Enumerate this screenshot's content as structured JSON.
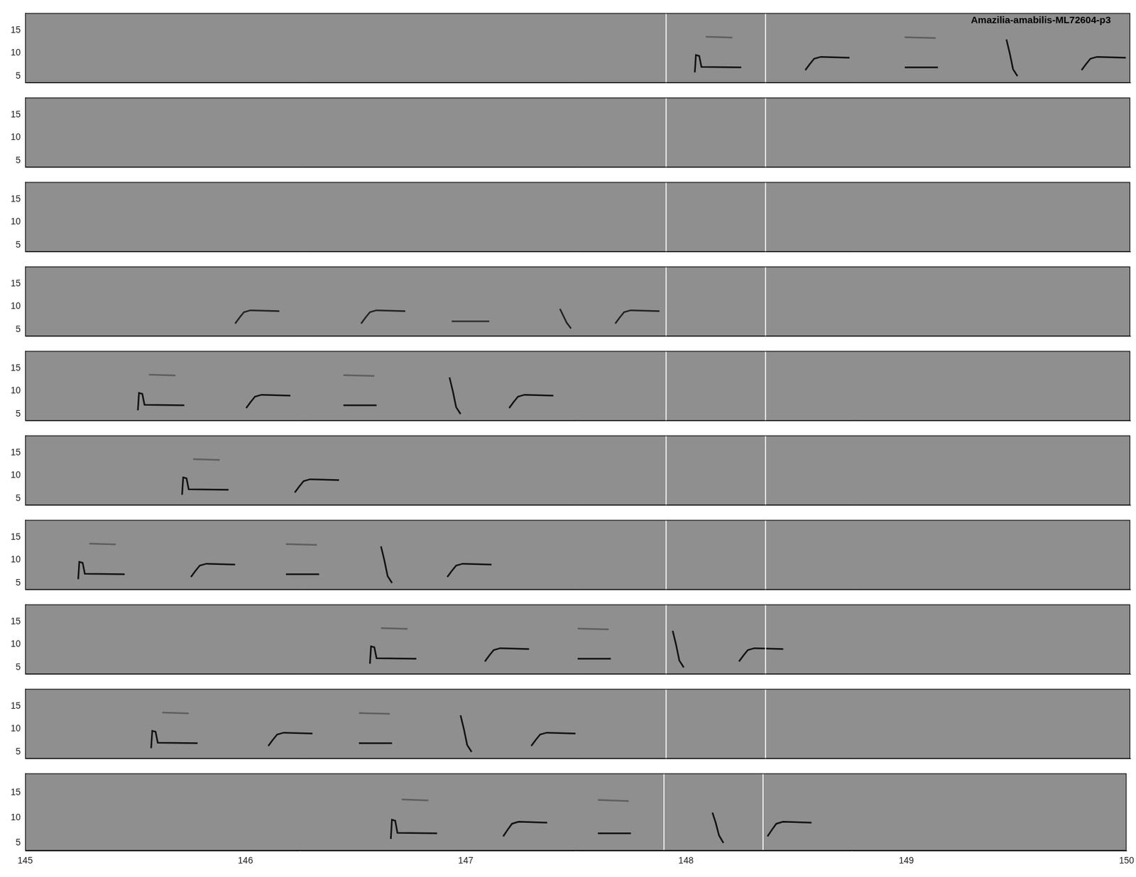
{
  "chart_data": [
    {
      "type": "line",
      "title": "Amazilia-amabilis-ML72604-p3",
      "xlim": [
        145,
        150
      ],
      "ylim": [
        3.5,
        18.75
      ],
      "xticks": [
        145,
        146,
        147,
        148,
        149,
        150
      ],
      "yticks": [
        5,
        10,
        15
      ],
      "tick_labels": "y",
      "vlines": [
        147.9,
        148.35
      ],
      "series": [
        {
          "color": "#111111",
          "x": [
            148.03,
            148.035,
            148.05,
            148.06,
            148.24
          ],
          "values": [
            5.8,
            9.6,
            9.4,
            7.0,
            6.9
          ]
        },
        {
          "color": "#5e5e5e",
          "x": [
            148.08,
            148.2
          ],
          "values": [
            13.6,
            13.4
          ]
        },
        {
          "color": "#111111",
          "x": [
            148.53,
            148.55,
            148.57,
            148.6,
            148.73
          ],
          "values": [
            6.3,
            7.6,
            8.8,
            9.2,
            9.0
          ]
        },
        {
          "color": "#111111",
          "x": [
            148.98,
            149.13
          ],
          "values": [
            6.9,
            6.9
          ]
        },
        {
          "color": "#5e5e5e",
          "x": [
            148.98,
            149.12
          ],
          "values": [
            13.5,
            13.3
          ]
        },
        {
          "color": "#111111",
          "x": [
            149.44,
            149.455,
            149.47,
            149.49
          ],
          "values": [
            13.0,
            10.0,
            6.5,
            5.0
          ]
        },
        {
          "color": "#111111",
          "x": [
            149.78,
            149.8,
            149.82,
            149.85,
            149.98
          ],
          "values": [
            6.3,
            7.6,
            8.8,
            9.2,
            9.0
          ]
        }
      ]
    },
    {
      "type": "line",
      "xlim": [
        145,
        150
      ],
      "ylim": [
        3.5,
        18.75
      ],
      "xticks": [
        145,
        146,
        147,
        148,
        149,
        150
      ],
      "yticks": [
        5,
        10,
        15
      ],
      "tick_labels": "y",
      "vlines": [
        147.9,
        148.35
      ],
      "series": []
    },
    {
      "type": "line",
      "xlim": [
        145,
        150
      ],
      "ylim": [
        3.5,
        18.75
      ],
      "xticks": [
        145,
        146,
        147,
        148,
        149,
        150
      ],
      "yticks": [
        5,
        10,
        15
      ],
      "tick_labels": "y",
      "vlines": [
        147.9,
        148.35
      ],
      "series": []
    },
    {
      "type": "line",
      "xlim": [
        145,
        150
      ],
      "ylim": [
        3.5,
        18.75
      ],
      "xticks": [
        145,
        146,
        147,
        148,
        149,
        150
      ],
      "yticks": [
        5,
        10,
        15
      ],
      "tick_labels": "y",
      "vlines": [
        147.9,
        148.35
      ],
      "series": [
        {
          "color": "#222222",
          "x": [
            145.95,
            145.97,
            145.99,
            146.02,
            146.15
          ],
          "values": [
            6.3,
            7.6,
            8.8,
            9.2,
            9.0
          ]
        },
        {
          "color": "#222222",
          "x": [
            146.52,
            146.54,
            146.56,
            146.59,
            146.72
          ],
          "values": [
            6.3,
            7.6,
            8.8,
            9.2,
            9.0
          ]
        },
        {
          "color": "#333333",
          "x": [
            146.93,
            147.1
          ],
          "values": [
            6.8,
            6.8
          ]
        },
        {
          "color": "#222222",
          "x": [
            147.42,
            147.435,
            147.45,
            147.47
          ],
          "values": [
            9.5,
            8.0,
            6.5,
            5.2
          ]
        },
        {
          "color": "#222222",
          "x": [
            147.67,
            147.69,
            147.71,
            147.74,
            147.87
          ],
          "values": [
            6.3,
            7.6,
            8.8,
            9.2,
            9.0
          ]
        }
      ]
    },
    {
      "type": "line",
      "xlim": [
        145,
        150
      ],
      "ylim": [
        3.5,
        18.75
      ],
      "xticks": [
        145,
        146,
        147,
        148,
        149,
        150
      ],
      "yticks": [
        5,
        10,
        15
      ],
      "tick_labels": "y",
      "vlines": [
        147.9,
        148.35
      ],
      "series": [
        {
          "color": "#111111",
          "x": [
            145.51,
            145.515,
            145.53,
            145.54,
            145.72
          ],
          "values": [
            5.8,
            9.6,
            9.4,
            7.0,
            6.9
          ]
        },
        {
          "color": "#5e5e5e",
          "x": [
            145.56,
            145.68
          ],
          "values": [
            13.6,
            13.4
          ]
        },
        {
          "color": "#111111",
          "x": [
            146.0,
            146.02,
            146.04,
            146.07,
            146.2
          ],
          "values": [
            6.3,
            7.6,
            8.8,
            9.2,
            9.0
          ]
        },
        {
          "color": "#111111",
          "x": [
            146.44,
            146.59
          ],
          "values": [
            6.9,
            6.9
          ]
        },
        {
          "color": "#5e5e5e",
          "x": [
            146.44,
            146.58
          ],
          "values": [
            13.5,
            13.3
          ]
        },
        {
          "color": "#111111",
          "x": [
            146.92,
            146.935,
            146.95,
            146.97
          ],
          "values": [
            13.0,
            10.0,
            6.5,
            5.0
          ]
        },
        {
          "color": "#111111",
          "x": [
            147.19,
            147.21,
            147.23,
            147.26,
            147.39
          ],
          "values": [
            6.3,
            7.6,
            8.8,
            9.2,
            9.0
          ]
        }
      ]
    },
    {
      "type": "line",
      "xlim": [
        145,
        150
      ],
      "ylim": [
        3.5,
        18.75
      ],
      "xticks": [
        145,
        146,
        147,
        148,
        149,
        150
      ],
      "yticks": [
        5,
        10,
        15
      ],
      "tick_labels": "y",
      "vlines": [
        147.9,
        148.35
      ],
      "series": [
        {
          "color": "#111111",
          "x": [
            145.71,
            145.715,
            145.73,
            145.74,
            145.92
          ],
          "values": [
            5.8,
            9.6,
            9.4,
            7.0,
            6.9
          ]
        },
        {
          "color": "#5e5e5e",
          "x": [
            145.76,
            145.88
          ],
          "values": [
            13.6,
            13.4
          ]
        },
        {
          "color": "#111111",
          "x": [
            146.22,
            146.24,
            146.26,
            146.29,
            146.42
          ],
          "values": [
            6.3,
            7.6,
            8.8,
            9.2,
            9.0
          ]
        }
      ]
    },
    {
      "type": "line",
      "xlim": [
        145,
        150
      ],
      "ylim": [
        3.5,
        18.75
      ],
      "xticks": [
        145,
        146,
        147,
        148,
        149,
        150
      ],
      "yticks": [
        5,
        10,
        15
      ],
      "tick_labels": "y",
      "vlines": [
        147.9,
        148.35
      ],
      "series": [
        {
          "color": "#111111",
          "x": [
            145.24,
            145.245,
            145.26,
            145.27,
            145.45
          ],
          "values": [
            5.8,
            9.6,
            9.4,
            7.0,
            6.9
          ]
        },
        {
          "color": "#5e5e5e",
          "x": [
            145.29,
            145.41
          ],
          "values": [
            13.6,
            13.4
          ]
        },
        {
          "color": "#111111",
          "x": [
            145.75,
            145.77,
            145.79,
            145.82,
            145.95
          ],
          "values": [
            6.3,
            7.6,
            8.8,
            9.2,
            9.0
          ]
        },
        {
          "color": "#111111",
          "x": [
            146.18,
            146.33
          ],
          "values": [
            6.9,
            6.9
          ]
        },
        {
          "color": "#5e5e5e",
          "x": [
            146.18,
            146.32
          ],
          "values": [
            13.5,
            13.3
          ]
        },
        {
          "color": "#111111",
          "x": [
            146.61,
            146.625,
            146.64,
            146.66
          ],
          "values": [
            13.0,
            10.0,
            6.5,
            5.0
          ]
        },
        {
          "color": "#111111",
          "x": [
            146.91,
            146.93,
            146.95,
            146.98,
            147.11
          ],
          "values": [
            6.3,
            7.6,
            8.8,
            9.2,
            9.0
          ]
        }
      ]
    },
    {
      "type": "line",
      "xlim": [
        145,
        150
      ],
      "ylim": [
        3.5,
        18.75
      ],
      "xticks": [
        145,
        146,
        147,
        148,
        149,
        150
      ],
      "yticks": [
        5,
        10,
        15
      ],
      "tick_labels": "y",
      "vlines": [
        147.9,
        148.35
      ],
      "series": [
        {
          "color": "#111111",
          "x": [
            146.56,
            146.565,
            146.58,
            146.59,
            146.77
          ],
          "values": [
            5.8,
            9.6,
            9.4,
            7.0,
            6.9
          ]
        },
        {
          "color": "#5e5e5e",
          "x": [
            146.61,
            146.73
          ],
          "values": [
            13.6,
            13.4
          ]
        },
        {
          "color": "#111111",
          "x": [
            147.08,
            147.1,
            147.12,
            147.15,
            147.28
          ],
          "values": [
            6.3,
            7.6,
            8.8,
            9.2,
            9.0
          ]
        },
        {
          "color": "#111111",
          "x": [
            147.5,
            147.65
          ],
          "values": [
            6.9,
            6.9
          ]
        },
        {
          "color": "#5e5e5e",
          "x": [
            147.5,
            147.64
          ],
          "values": [
            13.5,
            13.3
          ]
        },
        {
          "color": "#111111",
          "x": [
            147.93,
            147.945,
            147.96,
            147.98
          ],
          "values": [
            13.0,
            10.0,
            6.5,
            5.0
          ]
        },
        {
          "color": "#111111",
          "x": [
            148.23,
            148.25,
            148.27,
            148.3,
            148.43
          ],
          "values": [
            6.3,
            7.6,
            8.8,
            9.2,
            9.0
          ]
        }
      ]
    },
    {
      "type": "line",
      "xlim": [
        145,
        150
      ],
      "ylim": [
        3.5,
        18.75
      ],
      "xticks": [
        145,
        146,
        147,
        148,
        149,
        150
      ],
      "yticks": [
        5,
        10,
        15
      ],
      "tick_labels": "y",
      "vlines": [
        147.9,
        148.35
      ],
      "series": [
        {
          "color": "#111111",
          "x": [
            145.57,
            145.575,
            145.59,
            145.6,
            145.78
          ],
          "values": [
            5.8,
            9.6,
            9.4,
            7.0,
            6.9
          ]
        },
        {
          "color": "#5e5e5e",
          "x": [
            145.62,
            145.74
          ],
          "values": [
            13.6,
            13.4
          ]
        },
        {
          "color": "#111111",
          "x": [
            146.1,
            146.12,
            146.14,
            146.17,
            146.3
          ],
          "values": [
            6.3,
            7.6,
            8.8,
            9.2,
            9.0
          ]
        },
        {
          "color": "#111111",
          "x": [
            146.51,
            146.66
          ],
          "values": [
            6.9,
            6.9
          ]
        },
        {
          "color": "#5e5e5e",
          "x": [
            146.51,
            146.65
          ],
          "values": [
            13.5,
            13.3
          ]
        },
        {
          "color": "#111111",
          "x": [
            146.97,
            146.985,
            147.0,
            147.02
          ],
          "values": [
            13.0,
            10.0,
            6.5,
            5.0
          ]
        },
        {
          "color": "#111111",
          "x": [
            147.29,
            147.31,
            147.33,
            147.36,
            147.49
          ],
          "values": [
            6.3,
            7.6,
            8.8,
            9.2,
            9.0
          ]
        }
      ]
    },
    {
      "type": "line",
      "xlim": [
        145,
        150
      ],
      "ylim": [
        3.5,
        18.75
      ],
      "xticks": [
        145,
        146,
        147,
        148,
        149,
        150
      ],
      "yticks": [
        5,
        10,
        15
      ],
      "tick_labels": true,
      "vlines": [
        147.9,
        148.35
      ],
      "series": [
        {
          "color": "#111111",
          "x": [
            146.66,
            146.665,
            146.68,
            146.69,
            146.87
          ],
          "values": [
            5.8,
            9.6,
            9.4,
            7.0,
            6.9
          ]
        },
        {
          "color": "#5e5e5e",
          "x": [
            146.71,
            146.83
          ],
          "values": [
            13.6,
            13.4
          ]
        },
        {
          "color": "#111111",
          "x": [
            147.17,
            147.19,
            147.21,
            147.24,
            147.37
          ],
          "values": [
            6.3,
            7.6,
            8.8,
            9.2,
            9.0
          ]
        },
        {
          "color": "#111111",
          "x": [
            147.6,
            147.75
          ],
          "values": [
            6.9,
            6.9
          ]
        },
        {
          "color": "#5e5e5e",
          "x": [
            147.6,
            147.74
          ],
          "values": [
            13.5,
            13.3
          ]
        },
        {
          "color": "#111111",
          "x": [
            148.12,
            148.135,
            148.15,
            148.17
          ],
          "values": [
            11.0,
            9.0,
            6.5,
            5.0
          ]
        },
        {
          "color": "#111111",
          "x": [
            148.37,
            148.39,
            148.41,
            148.44,
            148.57
          ],
          "values": [
            6.3,
            7.6,
            8.8,
            9.2,
            9.0
          ]
        }
      ]
    }
  ]
}
